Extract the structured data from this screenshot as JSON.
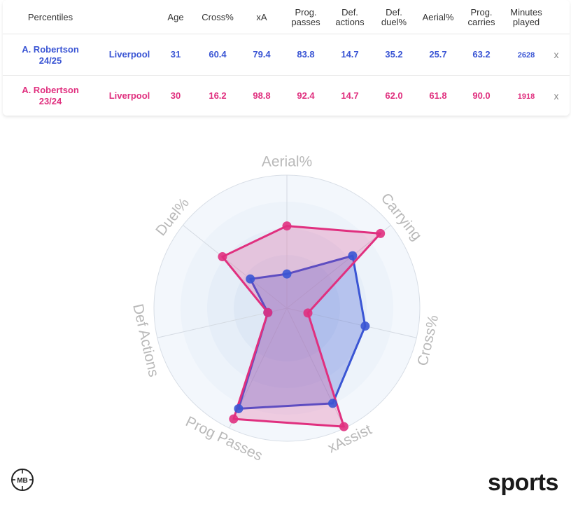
{
  "table": {
    "headers": {
      "percentiles": "Percentiles",
      "age": "Age",
      "cross": "Cross%",
      "xa": "xA",
      "prog_passes_1": "Prog.",
      "prog_passes_2": "passes",
      "def_actions_1": "Def.",
      "def_actions_2": "actions",
      "def_duel_1": "Def.",
      "def_duel_2": "duel%",
      "aerial": "Aerial%",
      "prog_carries_1": "Prog.",
      "prog_carries_2": "carries",
      "minutes_1": "Minutes",
      "minutes_2": "played"
    },
    "rows": [
      {
        "player_1": "A. Robertson",
        "player_2": "24/25",
        "team": "Liverpool",
        "age": "31",
        "cross": "60.4",
        "xa": "79.4",
        "prog_passes": "83.8",
        "def_actions": "14.7",
        "def_duel": "35.2",
        "aerial": "25.7",
        "prog_carries": "63.2",
        "minutes": "2628",
        "remove": "x"
      },
      {
        "player_1": "A. Robertson",
        "player_2": "23/24",
        "team": "Liverpool",
        "age": "30",
        "cross": "16.2",
        "xa": "98.8",
        "prog_passes": "92.4",
        "def_actions": "14.7",
        "def_duel": "62.0",
        "aerial": "61.8",
        "prog_carries": "90.0",
        "minutes": "1918",
        "remove": "x"
      }
    ]
  },
  "chart_data": {
    "type": "radar",
    "axes": [
      "Aerial%",
      "Carrying",
      "Cross%",
      "xAssist",
      "Prog Passes",
      "Def Actions",
      "Duel%"
    ],
    "range": [
      0,
      100
    ],
    "series": [
      {
        "name": "A. Robertson 24/25",
        "color": "#3a55d4",
        "values": [
          25.7,
          63.2,
          60.4,
          79.4,
          83.8,
          14.7,
          35.2
        ]
      },
      {
        "name": "A. Robertson 23/24",
        "color": "#e0307f",
        "values": [
          61.8,
          90.0,
          16.2,
          98.8,
          92.4,
          14.7,
          62.0
        ]
      }
    ]
  },
  "branding": {
    "logo_icon": "mb-logo-icon",
    "logo_text": "MB",
    "wordmark": "sports"
  }
}
